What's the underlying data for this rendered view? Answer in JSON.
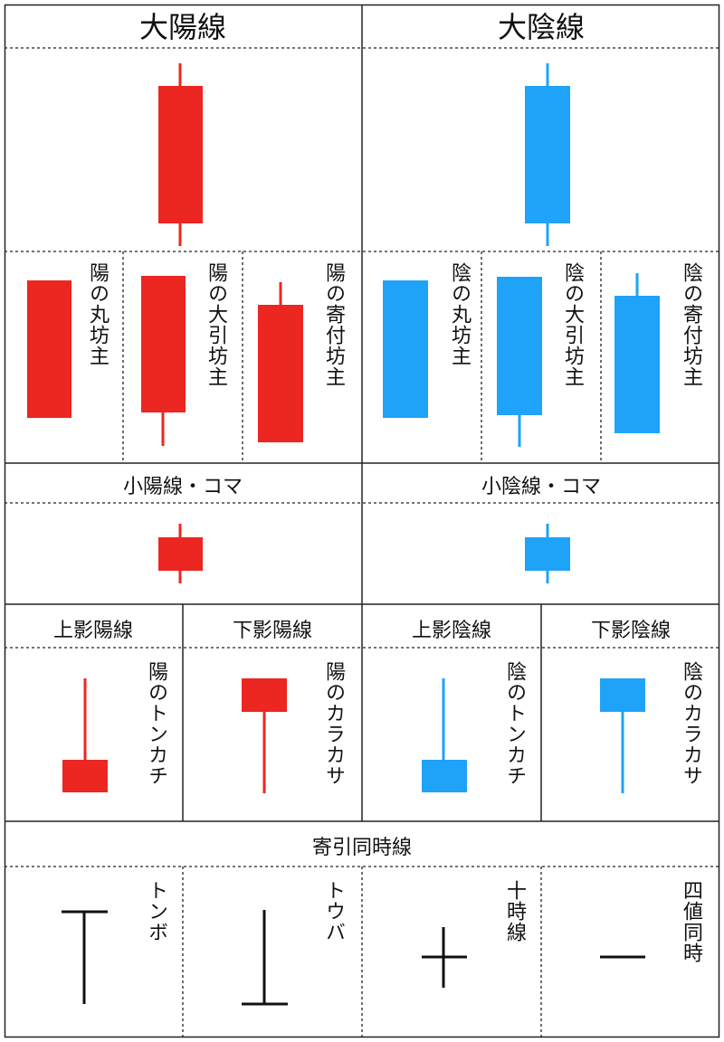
{
  "colors": {
    "yang": "#ec2620",
    "yin": "#1ea3f8",
    "neutral": "#111111"
  },
  "yang": {
    "title": "大陽線",
    "marubozu": "陽の丸坊主",
    "closing_bozu": "陽の大引坊主",
    "opening_bozu": "陽の寄付坊主",
    "small": "小陽線・コマ",
    "upper_shadow": "上影陽線",
    "lower_shadow": "下影陽線",
    "hammer_inverted": "陽のトンカチ",
    "umbrella": "陽のカラカサ"
  },
  "yin": {
    "title": "大陰線",
    "marubozu": "陰の丸坊主",
    "closing_bozu": "陰の大引坊主",
    "opening_bozu": "陰の寄付坊主",
    "small": "小陰線・コマ",
    "upper_shadow": "上影陰線",
    "lower_shadow": "下影陰線",
    "hammer_inverted": "陰のトンカチ",
    "umbrella": "陰のカラカサ"
  },
  "doji": {
    "title": "寄引同時線",
    "dragonfly": "トンボ",
    "gravestone": "トウバ",
    "cross": "十時線",
    "four_price": "四値同時"
  }
}
